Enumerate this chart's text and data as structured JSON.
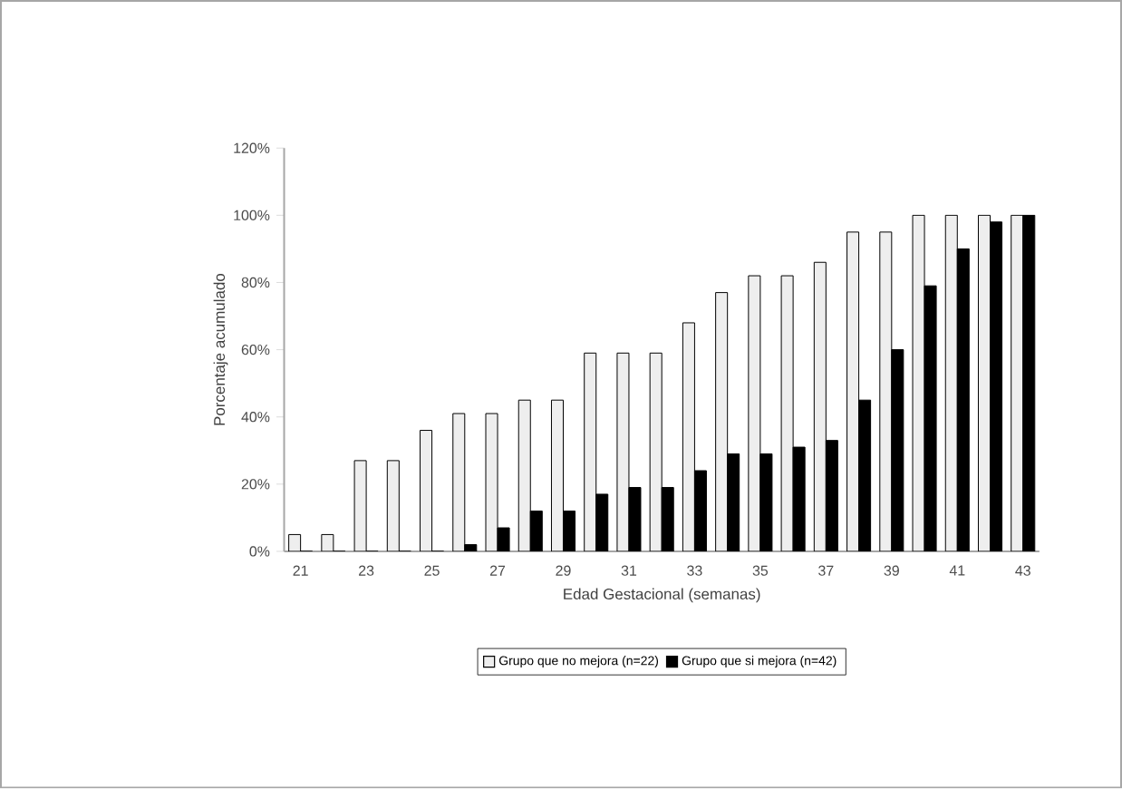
{
  "chart_data": {
    "type": "bar",
    "xlabel": "Edad Gestacional (semanas)",
    "ylabel": "Porcentaje acumulado",
    "categories": [
      "21",
      null,
      "23",
      null,
      "25",
      null,
      "27",
      null,
      "29",
      null,
      "31",
      null,
      "33",
      null,
      "35",
      null,
      "37",
      null,
      "39",
      null,
      "41",
      null,
      "43"
    ],
    "series": [
      {
        "name": "Grupo que no mejora (n=22)",
        "color": "#eeeeee",
        "values": [
          5,
          5,
          27,
          27,
          36,
          41,
          41,
          45,
          45,
          59,
          59,
          59,
          68,
          77,
          82,
          82,
          86,
          95,
          95,
          100,
          100,
          100,
          100
        ]
      },
      {
        "name": "Grupo que si mejora (n=42)",
        "color": "#000000",
        "values": [
          0,
          0,
          0,
          0,
          0,
          2,
          7,
          12,
          12,
          17,
          19,
          19,
          24,
          29,
          29,
          31,
          33,
          45,
          60,
          79,
          90,
          98,
          100
        ]
      }
    ],
    "ylim": [
      0,
      120
    ],
    "yticks": [
      {
        "value": 0,
        "label": "0%"
      },
      {
        "value": 20,
        "label": "20%"
      },
      {
        "value": 40,
        "label": "40%"
      },
      {
        "value": 60,
        "label": "60%"
      },
      {
        "value": 80,
        "label": "80%"
      },
      {
        "value": 100,
        "label": "100%"
      },
      {
        "value": 120,
        "label": "120%"
      }
    ],
    "legend": "bottom"
  }
}
